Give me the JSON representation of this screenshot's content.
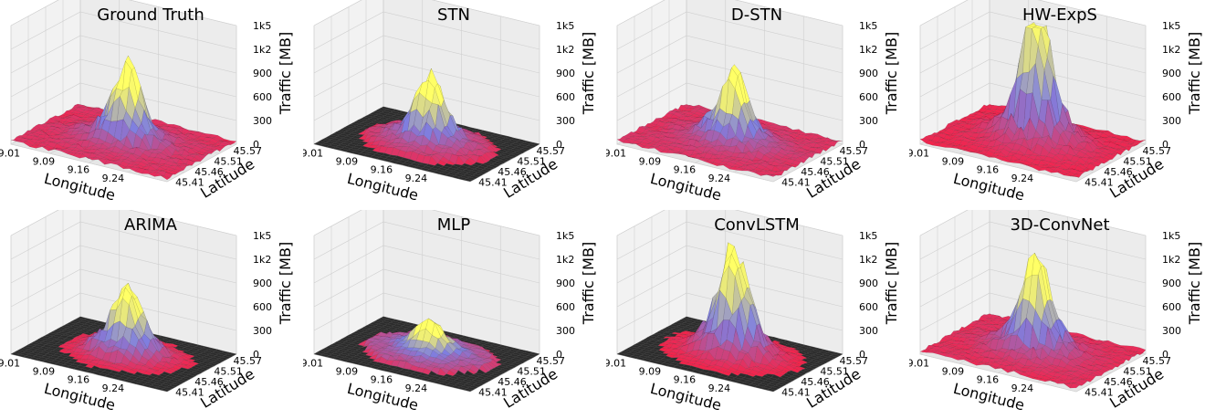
{
  "chart_data": [
    {
      "type": "surface3d",
      "title": "Ground Truth",
      "xlabel": "Longitude",
      "ylabel": "Latitude",
      "zlabel": "Traffic [MB]",
      "x_ticks": [
        "9.01",
        "9.09",
        "9.16",
        "9.24"
      ],
      "y_ticks": [
        "45.41",
        "45.46",
        "45.51",
        "45.57"
      ],
      "z_ticks": [
        "0",
        "300",
        "600",
        "900",
        "1k2",
        "1k5"
      ],
      "zlim": [
        0,
        1500
      ],
      "peak_value": 750,
      "coverage": "full",
      "colormap": [
        "#2b2b2b",
        "#ff1a3c",
        "#7f7fe0",
        "#ffff66"
      ],
      "grid": true
    },
    {
      "type": "surface3d",
      "title": "STN",
      "xlabel": "Longitude",
      "ylabel": "Latitude",
      "zlabel": "Traffic [MB]",
      "x_ticks": [
        "9.01",
        "9.09",
        "9.16",
        "9.24"
      ],
      "y_ticks": [
        "45.41",
        "45.46",
        "45.51",
        "45.57"
      ],
      "z_ticks": [
        "0",
        "300",
        "600",
        "900",
        "1k2",
        "1k5"
      ],
      "zlim": [
        0,
        1500
      ],
      "peak_value": 650,
      "coverage": "partial",
      "colormap": [
        "#2b2b2b",
        "#ff1a3c",
        "#7f7fe0",
        "#ffff66"
      ],
      "grid": true
    },
    {
      "type": "surface3d",
      "title": "D-STN",
      "xlabel": "Longitude",
      "ylabel": "Latitude",
      "zlabel": "Traffic [MB]",
      "x_ticks": [
        "9.01",
        "9.09",
        "9.16",
        "9.24"
      ],
      "y_ticks": [
        "45.41",
        "45.46",
        "45.51",
        "45.57"
      ],
      "z_ticks": [
        "0",
        "300",
        "600",
        "900",
        "1k2",
        "1k5"
      ],
      "zlim": [
        0,
        1500
      ],
      "peak_value": 700,
      "coverage": "full",
      "colormap": [
        "#2b2b2b",
        "#ff1a3c",
        "#7f7fe0",
        "#ffff66"
      ],
      "grid": true
    },
    {
      "type": "surface3d",
      "title": "HW-ExpS",
      "xlabel": "Longitude",
      "ylabel": "Latitude",
      "zlabel": "Traffic [MB]",
      "x_ticks": [
        "9.01",
        "9.09",
        "9.16",
        "9.24"
      ],
      "y_ticks": [
        "45.41",
        "45.46",
        "45.51",
        "45.57"
      ],
      "z_ticks": [
        "0",
        "300",
        "600",
        "900",
        "1k2",
        "1k5"
      ],
      "zlim": [
        0,
        1500
      ],
      "peak_value": 1500,
      "coverage": "full",
      "colormap": [
        "#2b2b2b",
        "#ff1a3c",
        "#7f7fe0",
        "#ffff66"
      ],
      "grid": true
    },
    {
      "type": "surface3d",
      "title": "ARIMA",
      "xlabel": "Longitude",
      "ylabel": "Latitude",
      "zlabel": "Traffic [MB]",
      "x_ticks": [
        "9.01",
        "9.09",
        "9.16",
        "9.24"
      ],
      "y_ticks": [
        "45.41",
        "45.46",
        "45.51",
        "45.57"
      ],
      "z_ticks": [
        "0",
        "300",
        "600",
        "900",
        "1k2",
        "1k5"
      ],
      "zlim": [
        0,
        1500
      ],
      "peak_value": 650,
      "coverage": "sparse",
      "colormap": [
        "#2b2b2b",
        "#ff1a3c",
        "#7f7fe0",
        "#ffff66"
      ],
      "grid": true
    },
    {
      "type": "surface3d",
      "title": "MLP",
      "xlabel": "Longitude",
      "ylabel": "Latitude",
      "zlabel": "Traffic [MB]",
      "x_ticks": [
        "9.01",
        "9.09",
        "9.16",
        "9.24"
      ],
      "y_ticks": [
        "45.41",
        "45.46",
        "45.51",
        "45.57"
      ],
      "z_ticks": [
        "0",
        "300",
        "600",
        "900",
        "1k2",
        "1k5"
      ],
      "zlim": [
        0,
        1500
      ],
      "peak_value": 300,
      "coverage": "partial",
      "colormap": [
        "#2b2b2b",
        "#ff1a3c",
        "#7f7fe0",
        "#ffff66"
      ],
      "grid": true
    },
    {
      "type": "surface3d",
      "title": "ConvLSTM",
      "xlabel": "Longitude",
      "ylabel": "Latitude",
      "zlabel": "Traffic [MB]",
      "x_ticks": [
        "9.01",
        "9.09",
        "9.16",
        "9.24"
      ],
      "y_ticks": [
        "45.41",
        "45.46",
        "45.51",
        "45.57"
      ],
      "z_ticks": [
        "0",
        "300",
        "600",
        "900",
        "1k2",
        "1k5"
      ],
      "zlim": [
        0,
        1500
      ],
      "peak_value": 1050,
      "coverage": "sparse",
      "colormap": [
        "#2b2b2b",
        "#ff1a3c",
        "#7f7fe0",
        "#ffff66"
      ],
      "grid": true
    },
    {
      "type": "surface3d",
      "title": "3D-ConvNet",
      "xlabel": "Longitude",
      "ylabel": "Latitude",
      "zlabel": "Traffic [MB]",
      "x_ticks": [
        "9.01",
        "9.09",
        "9.16",
        "9.24"
      ],
      "y_ticks": [
        "45.41",
        "45.46",
        "45.51",
        "45.57"
      ],
      "z_ticks": [
        "0",
        "300",
        "600",
        "900",
        "1k2",
        "1k5"
      ],
      "zlim": [
        0,
        1500
      ],
      "peak_value": 950,
      "coverage": "full",
      "colormap": [
        "#2b2b2b",
        "#ff1a3c",
        "#7f7fe0",
        "#ffff66"
      ],
      "grid": true
    }
  ]
}
